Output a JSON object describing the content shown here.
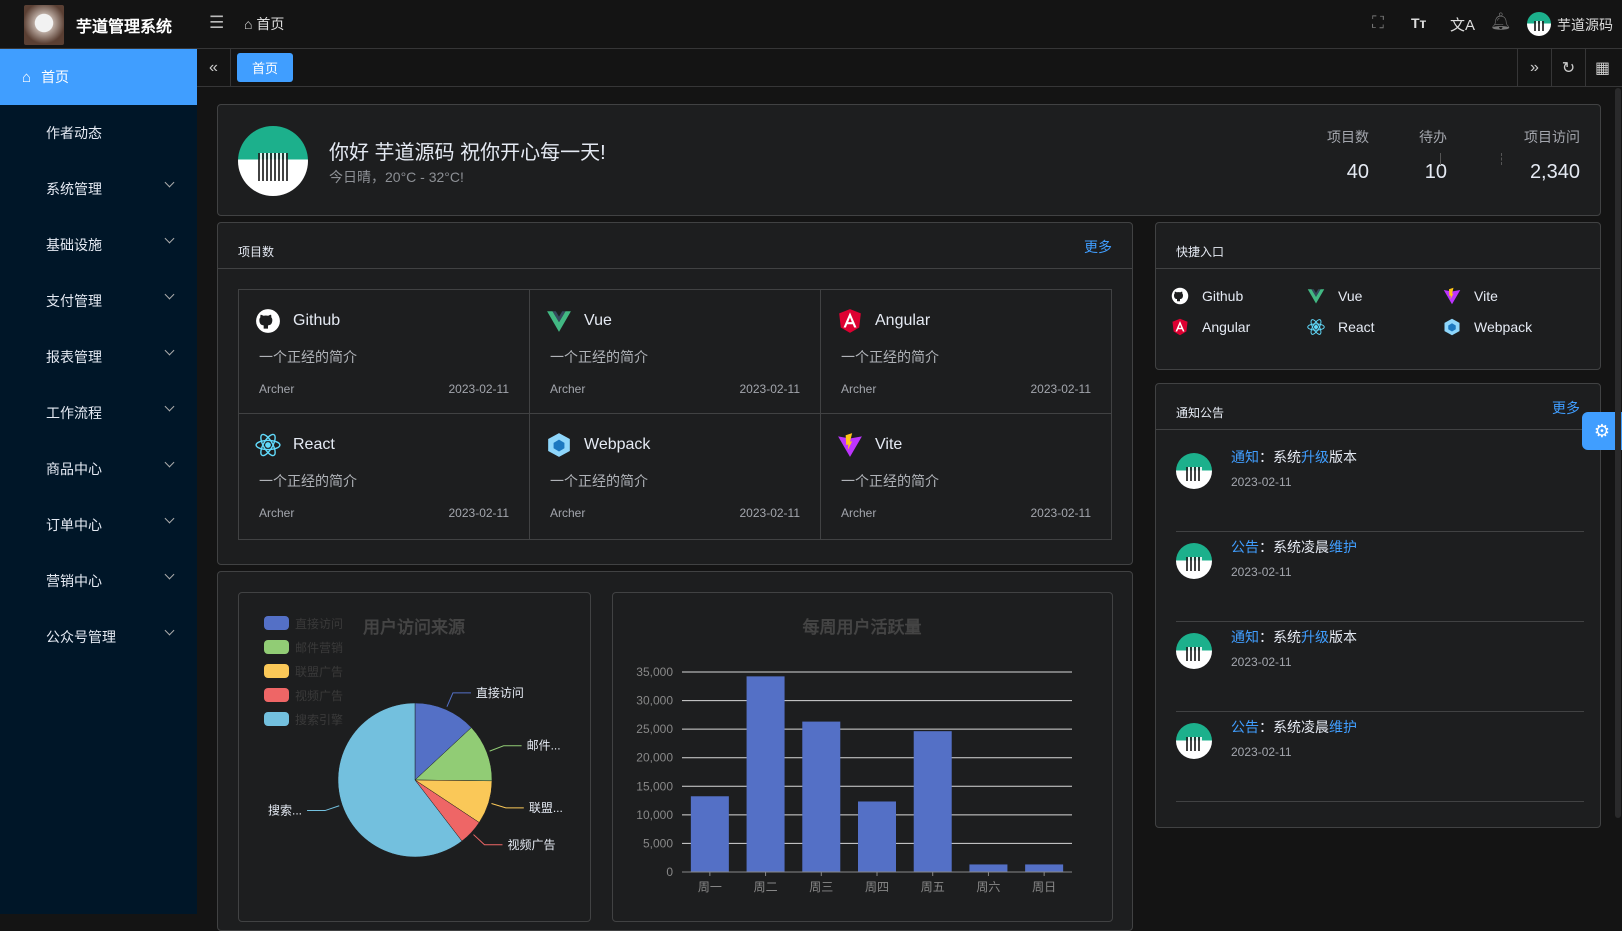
{
  "app": {
    "title": "芋道管理系统",
    "breadcrumb": "首页",
    "user": "芋道源码"
  },
  "sidebar": {
    "items": [
      {
        "label": "首页",
        "active": true
      },
      {
        "label": "作者动态"
      },
      {
        "label": "系统管理",
        "expandable": true
      },
      {
        "label": "基础设施",
        "expandable": true
      },
      {
        "label": "支付管理",
        "expandable": true
      },
      {
        "label": "报表管理",
        "expandable": true
      },
      {
        "label": "工作流程",
        "expandable": true
      },
      {
        "label": "商品中心",
        "expandable": true
      },
      {
        "label": "订单中心",
        "expandable": true
      },
      {
        "label": "营销中心",
        "expandable": true
      },
      {
        "label": "公众号管理",
        "expandable": true
      }
    ]
  },
  "tabs": [
    {
      "label": "首页",
      "active": true
    }
  ],
  "welcome": {
    "greeting": "你好 芋道源码 祝你开心每一天!",
    "weather": "今日晴，20°C - 32°C!",
    "stats": [
      {
        "label": "项目数",
        "value": "40"
      },
      {
        "label": "待办",
        "value": "10"
      },
      {
        "label": "项目访问",
        "value": "2,340"
      }
    ]
  },
  "projects": {
    "title": "项目数",
    "more": "更多",
    "items": [
      {
        "name": "Github",
        "icon": "github-icon",
        "color": "#ffffff",
        "desc": "一个正经的简介",
        "author": "Archer",
        "date": "2023-02-11"
      },
      {
        "name": "Vue",
        "icon": "vue-icon",
        "color": "#42b883",
        "desc": "一个正经的简介",
        "author": "Archer",
        "date": "2023-02-11"
      },
      {
        "name": "Angular",
        "icon": "angular-icon",
        "color": "#dd0031",
        "desc": "一个正经的简介",
        "author": "Archer",
        "date": "2023-02-11"
      },
      {
        "name": "React",
        "icon": "react-icon",
        "color": "#61dafb",
        "desc": "一个正经的简介",
        "author": "Archer",
        "date": "2023-02-11"
      },
      {
        "name": "Webpack",
        "icon": "webpack-icon",
        "color": "#8ed6fb",
        "desc": "一个正经的简介",
        "author": "Archer",
        "date": "2023-02-11"
      },
      {
        "name": "Vite",
        "icon": "vite-icon",
        "color": "#bd34fe",
        "desc": "一个正经的简介",
        "author": "Archer",
        "date": "2023-02-11"
      }
    ]
  },
  "shortcuts": {
    "title": "快捷入口",
    "items": [
      {
        "name": "Github",
        "icon": "github-icon",
        "color": "#ffffff"
      },
      {
        "name": "Vue",
        "icon": "vue-icon",
        "color": "#42b883"
      },
      {
        "name": "Vite",
        "icon": "vite-icon",
        "color": "#bd34fe"
      },
      {
        "name": "Angular",
        "icon": "angular-icon",
        "color": "#dd0031"
      },
      {
        "name": "React",
        "icon": "react-icon",
        "color": "#61dafb"
      },
      {
        "name": "Webpack",
        "icon": "webpack-icon",
        "color": "#8ed6fb"
      }
    ]
  },
  "notices": {
    "title": "通知公告",
    "more": "更多",
    "items": [
      {
        "type": "通知",
        "sep": "：",
        "parts": [
          "系统",
          "升级",
          "版本"
        ],
        "date": "2023-02-11"
      },
      {
        "type": "公告",
        "sep": "：",
        "parts": [
          "系统凌晨",
          "维护",
          ""
        ],
        "date": "2023-02-11"
      },
      {
        "type": "通知",
        "sep": "：",
        "parts": [
          "系统",
          "升级",
          "版本"
        ],
        "date": "2023-02-11"
      },
      {
        "type": "公告",
        "sep": "：",
        "parts": [
          "系统凌晨",
          "维护",
          ""
        ],
        "date": "2023-02-11"
      }
    ]
  },
  "colors": {
    "accent": "#409eff",
    "sidebar": "#001628"
  },
  "chart_data": [
    {
      "type": "pie",
      "title": "用户访问来源",
      "legend_position": "top-left",
      "slices": [
        {
          "name": "直接访问",
          "label": "直接访问",
          "value": 335,
          "color": "#5470c6"
        },
        {
          "name": "邮件营销",
          "label": "邮件...",
          "value": 310,
          "color": "#91cc75"
        },
        {
          "name": "联盟广告",
          "label": "联盟...",
          "value": 234,
          "color": "#fac858"
        },
        {
          "name": "视频广告",
          "label": "视频广告",
          "value": 135,
          "color": "#ee6666"
        },
        {
          "name": "搜索引擎",
          "label": "搜索...",
          "value": 1548,
          "color": "#73c0de"
        }
      ]
    },
    {
      "type": "bar",
      "title": "每周用户活跃量",
      "categories": [
        "周一",
        "周二",
        "周三",
        "周四",
        "周五",
        "周六",
        "周日"
      ],
      "values": [
        13253,
        34235,
        26321,
        12340,
        24643,
        1322,
        1324
      ],
      "ylim": [
        0,
        35000
      ],
      "yticks": [
        "0",
        "5,000",
        "10,000",
        "15,000",
        "20,000",
        "25,000",
        "30,000",
        "35,000"
      ],
      "grid": true,
      "color": "#5470c6"
    }
  ]
}
